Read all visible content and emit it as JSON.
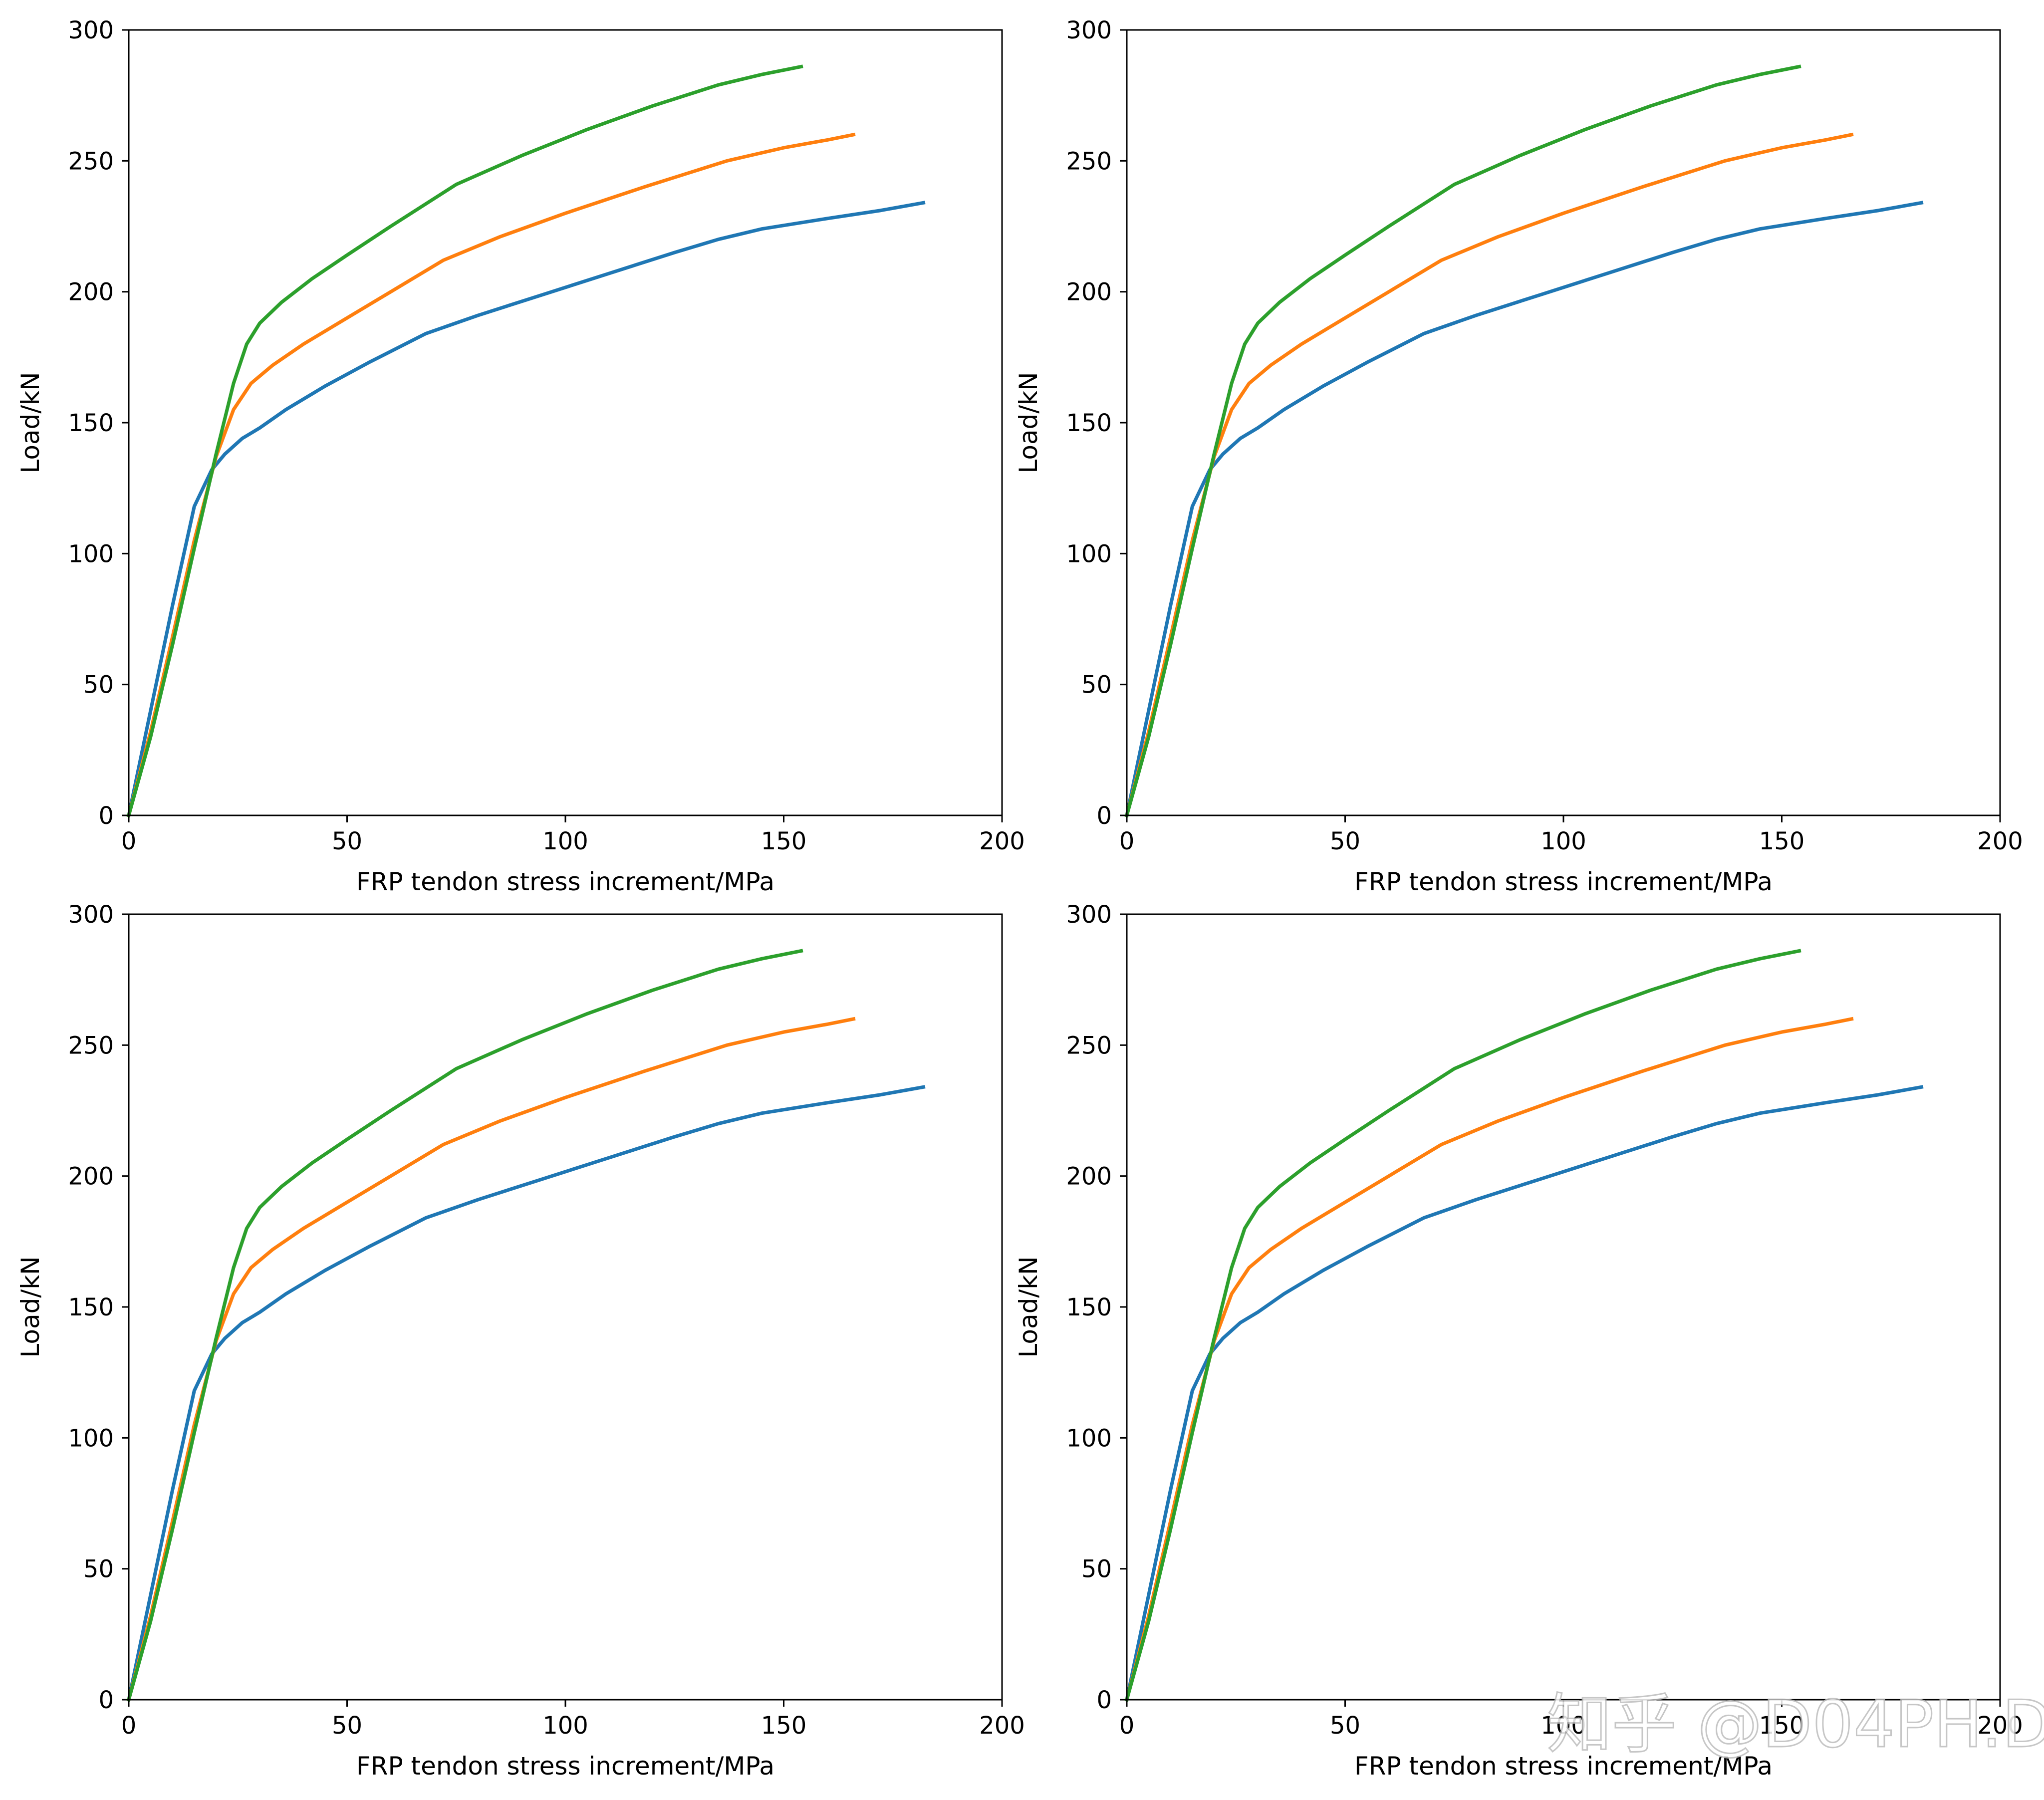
{
  "figure": {
    "watermark": "知乎 @D04PH.D"
  },
  "chart_data": [
    {
      "type": "line",
      "title": "",
      "xlabel": "FRP tendon stress increment/MPa",
      "ylabel": "Load/kN",
      "xlim": [
        0,
        200
      ],
      "ylim": [
        0,
        300
      ],
      "xticks": [
        "0",
        "50",
        "100",
        "150",
        "200"
      ],
      "yticks": [
        "0",
        "50",
        "100",
        "150",
        "200",
        "250",
        "300"
      ],
      "grid": false,
      "legend": "none",
      "series": [
        {
          "color": "#1f77b4",
          "x": [
            0,
            5,
            10,
            15,
            19,
            22,
            26,
            30,
            36,
            45,
            55,
            68,
            80,
            95,
            110,
            125,
            135,
            145,
            160,
            172,
            182
          ],
          "y": [
            0,
            40,
            80,
            118,
            132,
            138,
            144,
            148,
            155,
            164,
            173,
            184,
            191,
            199,
            207,
            215,
            220,
            224,
            228,
            231,
            234
          ]
        },
        {
          "color": "#ff7f0e",
          "x": [
            0,
            5,
            10,
            15,
            20,
            24,
            28,
            33,
            40,
            50,
            60,
            72,
            85,
            100,
            118,
            137,
            150,
            160,
            166
          ],
          "y": [
            0,
            32,
            68,
            105,
            137,
            155,
            165,
            172,
            180,
            190,
            200,
            212,
            221,
            230,
            240,
            250,
            255,
            258,
            260
          ]
        },
        {
          "color": "#2ca02c",
          "x": [
            0,
            5,
            10,
            15,
            20,
            24,
            27,
            30,
            35,
            42,
            50,
            60,
            75,
            90,
            105,
            120,
            135,
            145,
            154
          ],
          "y": [
            0,
            30,
            65,
            102,
            138,
            165,
            180,
            188,
            196,
            205,
            214,
            225,
            241,
            252,
            262,
            271,
            279,
            283,
            286
          ]
        }
      ]
    },
    {
      "type": "line",
      "title": "",
      "xlabel": "FRP tendon stress increment/MPa",
      "ylabel": "Load/kN",
      "xlim": [
        0,
        200
      ],
      "ylim": [
        0,
        300
      ],
      "xticks": [
        "0",
        "50",
        "100",
        "150",
        "200"
      ],
      "yticks": [
        "0",
        "50",
        "100",
        "150",
        "200",
        "250",
        "300"
      ],
      "grid": false,
      "legend": "none",
      "series": [
        {
          "color": "#1f77b4",
          "x": [
            0,
            5,
            10,
            15,
            19,
            22,
            26,
            30,
            36,
            45,
            55,
            68,
            80,
            95,
            110,
            125,
            135,
            145,
            160,
            172,
            182
          ],
          "y": [
            0,
            40,
            80,
            118,
            132,
            138,
            144,
            148,
            155,
            164,
            173,
            184,
            191,
            199,
            207,
            215,
            220,
            224,
            228,
            231,
            234
          ]
        },
        {
          "color": "#ff7f0e",
          "x": [
            0,
            5,
            10,
            15,
            20,
            24,
            28,
            33,
            40,
            50,
            60,
            72,
            85,
            100,
            118,
            137,
            150,
            160,
            166
          ],
          "y": [
            0,
            32,
            68,
            105,
            137,
            155,
            165,
            172,
            180,
            190,
            200,
            212,
            221,
            230,
            240,
            250,
            255,
            258,
            260
          ]
        },
        {
          "color": "#2ca02c",
          "x": [
            0,
            5,
            10,
            15,
            20,
            24,
            27,
            30,
            35,
            42,
            50,
            60,
            75,
            90,
            105,
            120,
            135,
            145,
            154
          ],
          "y": [
            0,
            30,
            65,
            102,
            138,
            165,
            180,
            188,
            196,
            205,
            214,
            225,
            241,
            252,
            262,
            271,
            279,
            283,
            286
          ]
        }
      ]
    },
    {
      "type": "line",
      "title": "",
      "xlabel": "FRP tendon stress increment/MPa",
      "ylabel": "Load/kN",
      "xlim": [
        0,
        200
      ],
      "ylim": [
        0,
        300
      ],
      "xticks": [
        "0",
        "50",
        "100",
        "150",
        "200"
      ],
      "yticks": [
        "0",
        "50",
        "100",
        "150",
        "200",
        "250",
        "300"
      ],
      "grid": false,
      "legend": "none",
      "series": [
        {
          "color": "#1f77b4",
          "x": [
            0,
            5,
            10,
            15,
            19,
            22,
            26,
            30,
            36,
            45,
            55,
            68,
            80,
            95,
            110,
            125,
            135,
            145,
            160,
            172,
            182
          ],
          "y": [
            0,
            40,
            80,
            118,
            132,
            138,
            144,
            148,
            155,
            164,
            173,
            184,
            191,
            199,
            207,
            215,
            220,
            224,
            228,
            231,
            234
          ]
        },
        {
          "color": "#ff7f0e",
          "x": [
            0,
            5,
            10,
            15,
            20,
            24,
            28,
            33,
            40,
            50,
            60,
            72,
            85,
            100,
            118,
            137,
            150,
            160,
            166
          ],
          "y": [
            0,
            32,
            68,
            105,
            137,
            155,
            165,
            172,
            180,
            190,
            200,
            212,
            221,
            230,
            240,
            250,
            255,
            258,
            260
          ]
        },
        {
          "color": "#2ca02c",
          "x": [
            0,
            5,
            10,
            15,
            20,
            24,
            27,
            30,
            35,
            42,
            50,
            60,
            75,
            90,
            105,
            120,
            135,
            145,
            154
          ],
          "y": [
            0,
            30,
            65,
            102,
            138,
            165,
            180,
            188,
            196,
            205,
            214,
            225,
            241,
            252,
            262,
            271,
            279,
            283,
            286
          ]
        }
      ]
    },
    {
      "type": "line",
      "title": "",
      "xlabel": "FRP tendon stress increment/MPa",
      "ylabel": "Load/kN",
      "xlim": [
        0,
        200
      ],
      "ylim": [
        0,
        300
      ],
      "xticks": [
        "0",
        "50",
        "100",
        "150",
        "200"
      ],
      "yticks": [
        "0",
        "50",
        "100",
        "150",
        "200",
        "250",
        "300"
      ],
      "grid": false,
      "legend": "none",
      "series": [
        {
          "color": "#1f77b4",
          "x": [
            0,
            5,
            10,
            15,
            19,
            22,
            26,
            30,
            36,
            45,
            55,
            68,
            80,
            95,
            110,
            125,
            135,
            145,
            160,
            172,
            182
          ],
          "y": [
            0,
            40,
            80,
            118,
            132,
            138,
            144,
            148,
            155,
            164,
            173,
            184,
            191,
            199,
            207,
            215,
            220,
            224,
            228,
            231,
            234
          ]
        },
        {
          "color": "#ff7f0e",
          "x": [
            0,
            5,
            10,
            15,
            20,
            24,
            28,
            33,
            40,
            50,
            60,
            72,
            85,
            100,
            118,
            137,
            150,
            160,
            166
          ],
          "y": [
            0,
            32,
            68,
            105,
            137,
            155,
            165,
            172,
            180,
            190,
            200,
            212,
            221,
            230,
            240,
            250,
            255,
            258,
            260
          ]
        },
        {
          "color": "#2ca02c",
          "x": [
            0,
            5,
            10,
            15,
            20,
            24,
            27,
            30,
            35,
            42,
            50,
            60,
            75,
            90,
            105,
            120,
            135,
            145,
            154
          ],
          "y": [
            0,
            30,
            65,
            102,
            138,
            165,
            180,
            188,
            196,
            205,
            214,
            225,
            241,
            252,
            262,
            271,
            279,
            283,
            286
          ]
        }
      ]
    }
  ]
}
